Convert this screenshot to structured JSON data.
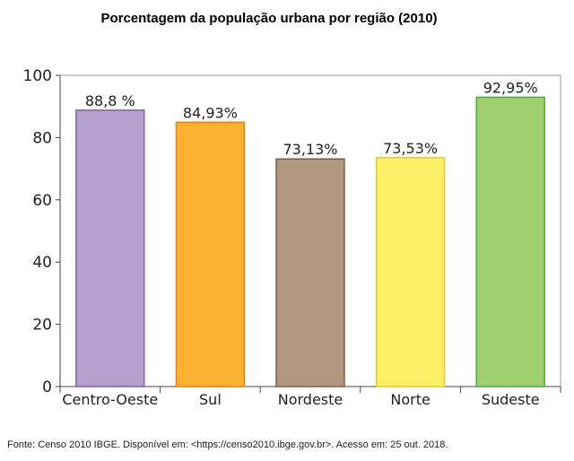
{
  "chart_data": {
    "type": "bar",
    "title": "Porcentagem da população urbana por região (2010)",
    "categories": [
      "Centro-Oeste",
      "Sul",
      "Nordeste",
      "Norte",
      "Sudeste"
    ],
    "values": [
      88.8,
      84.93,
      73.13,
      73.53,
      92.95
    ],
    "value_labels": [
      "88,8 %",
      "84,93%",
      "73,13%",
      "73,53%",
      "92,95%"
    ],
    "ylim": [
      0,
      100
    ],
    "yticks": [
      0,
      20,
      40,
      60,
      80,
      100
    ],
    "xlabel": "",
    "ylabel": "",
    "grid": false,
    "legend": "none",
    "colors": {
      "fills": [
        "#b59fcd",
        "#fbb231",
        "#b3967e",
        "#fdf066",
        "#9ed070"
      ],
      "strokes": [
        "#7e66a8",
        "#ef7d13",
        "#7a5e4a",
        "#e6c82e",
        "#4aaa3c"
      ]
    }
  },
  "source_note": "Fonte: Censo 2010 IBGE. Disponível em: <https://censo2010.ibge.gov.br>. Acesso em: 25 out. 2018."
}
